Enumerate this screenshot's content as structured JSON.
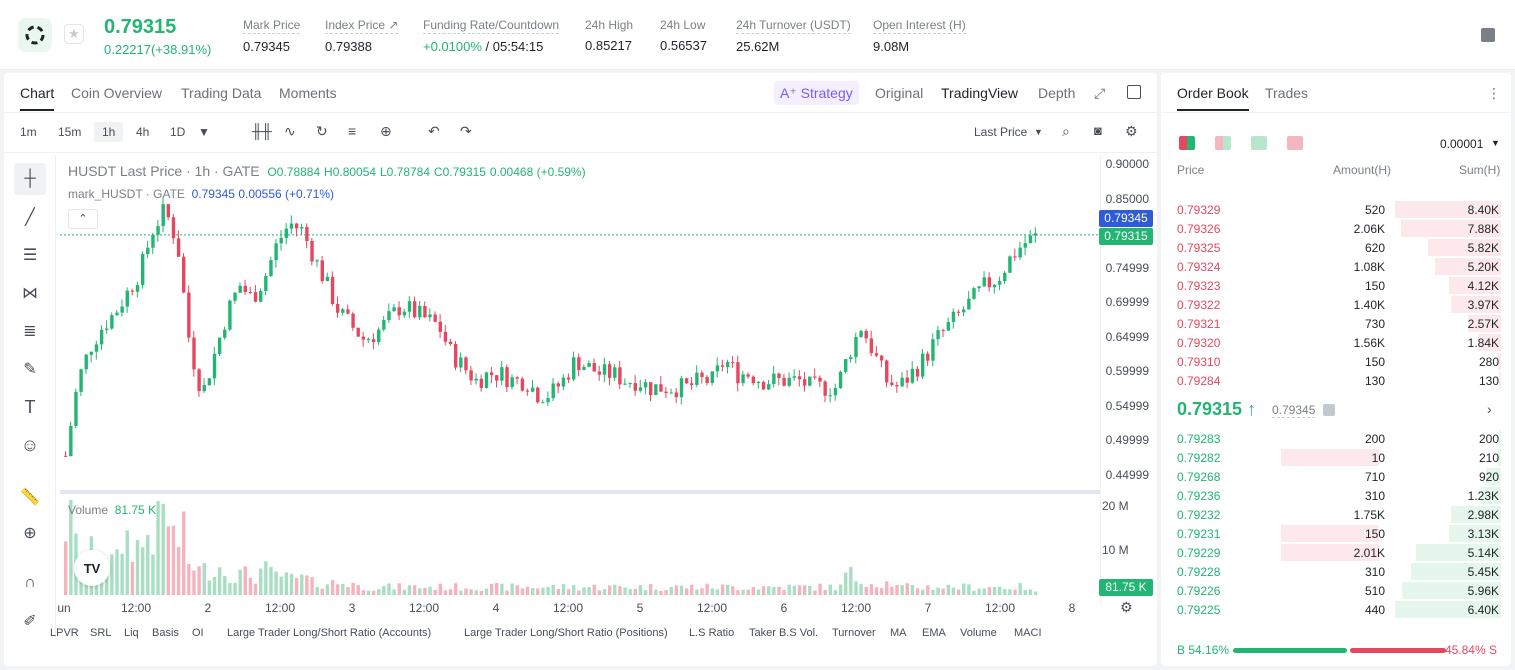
{
  "header": {
    "last_price": "0.79315",
    "change": "0.22217(+38.91%)",
    "stats": [
      {
        "label": "Mark Price",
        "value": "0.79345"
      },
      {
        "label": "Index Price ↗",
        "value": "0.79388"
      },
      {
        "label": "Funding Rate/Countdown",
        "value_pos": "+0.0100%",
        "value": " / 05:54:15"
      },
      {
        "label": "24h High",
        "value": "0.85217"
      },
      {
        "label": "24h Low",
        "value": "0.56537"
      },
      {
        "label": "24h Turnover (USDT)",
        "value": "25.62M"
      },
      {
        "label": "Open Interest (H)",
        "value": "9.08M"
      }
    ]
  },
  "chart_tabs": [
    "Chart",
    "Coin Overview",
    "Trading Data",
    "Moments"
  ],
  "view_tabs": {
    "strategy": "A⁺ Strategy",
    "original": "Original",
    "tradingview": "TradingView",
    "depth": "Depth"
  },
  "timeframes": [
    "1m",
    "15m",
    "1h",
    "4h",
    "1D"
  ],
  "last_price_select": "Last Price",
  "legend": {
    "symbol": "HUSDT Last Price · 1h · GATE",
    "o": "O0.78884",
    "h": "H0.80054",
    "l": "L0.78784",
    "c": "C0.79315",
    "chg": "0.00468 (+0.59%)",
    "mark_label": "mark_HUSDT · GATE",
    "mark_val": "0.79345",
    "mark_chg": "0.00556 (+0.71%)"
  },
  "volume": {
    "label": "Volume",
    "value": "81.75 K",
    "axis": [
      "20 M",
      "10 M"
    ],
    "tag": "81.75 K"
  },
  "price_axis": [
    "0.90000",
    "0.85000",
    "0.79999",
    "0.74999",
    "0.69999",
    "0.64999",
    "0.59999",
    "0.54999",
    "0.49999",
    "0.44999"
  ],
  "price_tags": {
    "mark": "0.79345",
    "last": "0.79315"
  },
  "time_axis": [
    "un",
    "12:00",
    "2",
    "12:00",
    "3",
    "12:00",
    "4",
    "12:00",
    "5",
    "12:00",
    "6",
    "12:00",
    "7",
    "12:00",
    "8"
  ],
  "indicators": [
    "LPVR",
    "SRL",
    "Liq",
    "Basis",
    "OI",
    "Large Trader Long/Short Ratio (Accounts)",
    "Large Trader Long/Short Ratio (Positions)",
    "L.S Ratio",
    "Taker B.S Vol.",
    "Turnover",
    "MA",
    "EMA",
    "Volume",
    "MACI"
  ],
  "colors": {
    "up": "#22b573",
    "down": "#e5475f",
    "mark": "#2f5bd8"
  },
  "orderbook": {
    "tabs": [
      "Order Book",
      "Trades"
    ],
    "precision": "0.00001",
    "columns": [
      "Price",
      "Amount(H)",
      "Sum(H)"
    ],
    "asks": [
      {
        "price": "0.79329",
        "amount": "520",
        "sum": "8.40K",
        "depth": 1.0
      },
      {
        "price": "0.79326",
        "amount": "2.06K",
        "sum": "7.88K",
        "depth": 0.94
      },
      {
        "price": "0.79325",
        "amount": "620",
        "sum": "5.82K",
        "depth": 0.69
      },
      {
        "price": "0.79324",
        "amount": "1.08K",
        "sum": "5.20K",
        "depth": 0.62
      },
      {
        "price": "0.79323",
        "amount": "150",
        "sum": "4.12K",
        "depth": 0.49
      },
      {
        "price": "0.79322",
        "amount": "1.40K",
        "sum": "3.97K",
        "depth": 0.47
      },
      {
        "price": "0.79321",
        "amount": "730",
        "sum": "2.57K",
        "depth": 0.31
      },
      {
        "price": "0.79320",
        "amount": "1.56K",
        "sum": "1.84K",
        "depth": 0.22
      },
      {
        "price": "0.79310",
        "amount": "150",
        "sum": "280",
        "depth": 0.03
      },
      {
        "price": "0.79284",
        "amount": "130",
        "sum": "130",
        "depth": 0.02
      }
    ],
    "mid": "0.79315 ↑",
    "mid_mark": "0.79345",
    "bids": [
      {
        "price": "0.79283",
        "amount": "200",
        "sum": "200",
        "depth": 0.02
      },
      {
        "price": "0.79282",
        "amount": "10",
        "sum": "210",
        "depth": 0.03,
        "highlight": 0.56
      },
      {
        "price": "0.79268",
        "amount": "710",
        "sum": "920",
        "depth": 0.14
      },
      {
        "price": "0.79236",
        "amount": "310",
        "sum": "1.23K",
        "depth": 0.19
      },
      {
        "price": "0.79232",
        "amount": "1.75K",
        "sum": "2.98K",
        "depth": 0.47
      },
      {
        "price": "0.79231",
        "amount": "150",
        "sum": "3.13K",
        "depth": 0.49,
        "highlight": 0.56
      },
      {
        "price": "0.79229",
        "amount": "2.01K",
        "sum": "5.14K",
        "depth": 0.8,
        "highlight": 0.56
      },
      {
        "price": "0.79228",
        "amount": "310",
        "sum": "5.45K",
        "depth": 0.85
      },
      {
        "price": "0.79226",
        "amount": "510",
        "sum": "5.96K",
        "depth": 0.93
      },
      {
        "price": "0.79225",
        "amount": "440",
        "sum": "6.40K",
        "depth": 1.0
      }
    ],
    "buy_ratio": "B 54.16%",
    "sell_ratio": "45.84% S",
    "buy_frac": 0.5416
  },
  "chart_data": {
    "type": "candlestick",
    "price_range": [
      0.42,
      0.91
    ],
    "close_series": [
      0.47,
      0.58,
      0.63,
      0.66,
      0.68,
      0.71,
      0.74,
      0.8,
      0.83,
      0.78,
      0.63,
      0.56,
      0.62,
      0.68,
      0.72,
      0.7,
      0.73,
      0.78,
      0.81,
      0.8,
      0.76,
      0.72,
      0.68,
      0.66,
      0.64,
      0.65,
      0.67,
      0.69,
      0.68,
      0.67,
      0.66,
      0.62,
      0.6,
      0.58,
      0.59,
      0.59,
      0.58,
      0.58,
      0.56,
      0.56,
      0.58,
      0.61,
      0.6,
      0.59,
      0.59,
      0.58,
      0.58,
      0.57,
      0.57,
      0.57,
      0.57,
      0.58,
      0.58,
      0.61,
      0.59,
      0.59,
      0.58,
      0.58,
      0.58,
      0.58,
      0.57,
      0.57,
      0.57,
      0.62,
      0.66,
      0.62,
      0.58,
      0.57,
      0.59,
      0.61,
      0.64,
      0.66,
      0.68,
      0.7,
      0.72,
      0.73,
      0.76,
      0.78,
      0.79
    ],
    "volume_series": [
      18,
      12,
      10,
      9,
      8,
      14,
      12,
      16,
      20,
      14,
      8,
      6,
      7,
      6,
      5,
      5,
      6,
      5,
      4,
      4,
      3,
      3,
      3,
      3,
      2,
      2,
      2,
      2,
      2,
      2,
      2,
      2,
      2,
      2,
      2,
      2,
      2,
      2,
      2,
      2,
      2,
      2,
      2,
      2,
      2,
      2,
      2,
      2,
      2,
      2,
      2,
      2,
      2,
      2,
      2,
      2,
      2,
      2,
      2,
      2,
      2,
      2,
      2,
      5,
      4,
      3,
      3,
      2,
      2,
      2,
      2,
      2,
      2,
      2,
      2,
      2,
      2,
      2,
      1
    ]
  }
}
